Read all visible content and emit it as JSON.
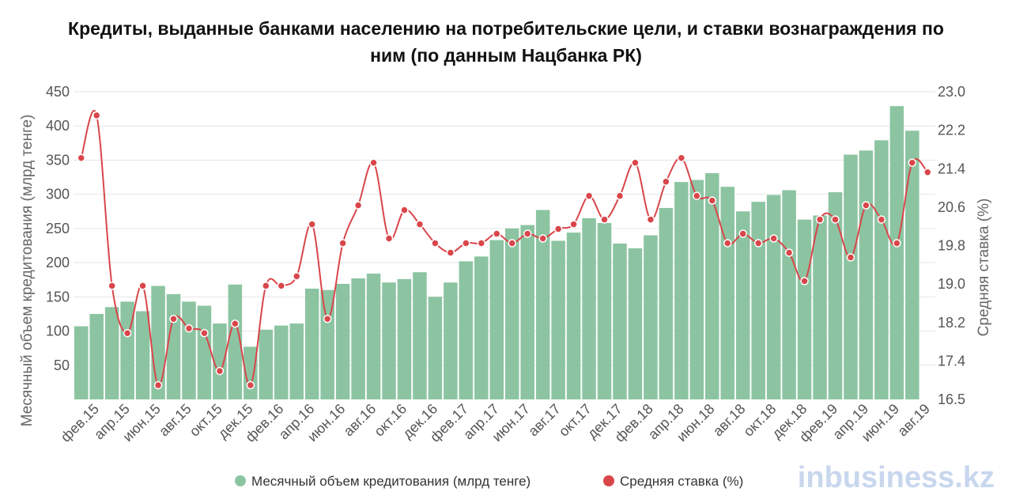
{
  "chart_data": {
    "type": "bar+line",
    "title_lines": [
      "Кредиты, выданные банками населению на потребительские цели, и ставки вознаграждения по",
      "ним (по данным Нацбанка РК)"
    ],
    "y_left": {
      "label": "Месячный объем кредитования (млрд тенге)",
      "ticks": [
        50,
        100,
        150,
        200,
        250,
        300,
        350,
        400,
        450
      ],
      "range": [
        0,
        450
      ]
    },
    "y_right": {
      "label": "Средняя ставка (%)",
      "ticks": [
        "16.5",
        "17.4",
        "18.2",
        "19.0",
        "19.8",
        "20.6",
        "21.4",
        "22.2",
        "23.0"
      ],
      "range": [
        16.5,
        23.0
      ]
    },
    "x_tick_labels": [
      "фев.15",
      "апр.15",
      "июн.15",
      "авг.15",
      "окт.15",
      "дек.15",
      "фев.16",
      "апр.16",
      "июн.16",
      "авг.16",
      "окт.16",
      "дек.16",
      "фев.17",
      "апр.17",
      "июн.17",
      "авг.17",
      "окт.17",
      "дек.17",
      "фев.18",
      "апр.18",
      "июн.18",
      "авг.18",
      "окт.18",
      "дек.18",
      "фев.19",
      "апр.19",
      "июн.19",
      "авг.19"
    ],
    "months": [
      "янв.15",
      "фев.15",
      "мар.15",
      "апр.15",
      "май.15",
      "июн.15",
      "июл.15",
      "авг.15",
      "сен.15",
      "окт.15",
      "ноя.15",
      "дек.15",
      "янв.16",
      "фев.16",
      "мар.16",
      "апр.16",
      "май.16",
      "июн.16",
      "июл.16",
      "авг.16",
      "сен.16",
      "окт.16",
      "ноя.16",
      "дек.16",
      "янв.17",
      "фев.17",
      "мар.17",
      "апр.17",
      "май.17",
      "июн.17",
      "июл.17",
      "авг.17",
      "сен.17",
      "окт.17",
      "ноя.17",
      "дек.17",
      "янв.18",
      "фев.18",
      "мар.18",
      "апр.18",
      "май.18",
      "июн.18",
      "июл.18",
      "авг.18",
      "сен.18",
      "окт.18",
      "ноя.18",
      "дек.18",
      "янв.19",
      "фев.19",
      "мар.19",
      "апр.19",
      "май.19",
      "июн.19",
      "июл.19",
      "авг.19"
    ],
    "series": [
      {
        "name": "Месячный объем кредитования (млрд тенге)",
        "kind": "bar",
        "axis": "left",
        "color": "#8cc4a2",
        "values": [
          107,
          125,
          135,
          143,
          129,
          166,
          154,
          143,
          137,
          111,
          168,
          77,
          102,
          108,
          111,
          162,
          160,
          169,
          177,
          184,
          171,
          176,
          186,
          150,
          171,
          202,
          209,
          233,
          250,
          255,
          277,
          232,
          244,
          265,
          258,
          228,
          221,
          240,
          280,
          318,
          321,
          331,
          311,
          275,
          289,
          299,
          306,
          263,
          269,
          303,
          358,
          364,
          379,
          429,
          393,
          null
        ]
      },
      {
        "name": "Средняя ставка (%)",
        "kind": "line",
        "axis": "right",
        "color": "#d9464a",
        "values": [
          21.6,
          22.5,
          18.9,
          17.9,
          18.9,
          16.8,
          18.2,
          18.0,
          17.9,
          17.1,
          18.1,
          16.8,
          18.9,
          18.9,
          19.1,
          20.2,
          18.2,
          19.8,
          20.6,
          21.5,
          19.9,
          20.5,
          20.2,
          19.8,
          19.6,
          19.8,
          19.8,
          20.0,
          19.8,
          20.0,
          19.9,
          20.1,
          20.2,
          20.8,
          20.3,
          20.8,
          21.5,
          20.3,
          21.1,
          21.6,
          20.8,
          20.7,
          19.8,
          20.0,
          19.8,
          19.9,
          19.6,
          19.0,
          20.3,
          20.3,
          19.5,
          20.6,
          20.3,
          19.8,
          21.5,
          21.3
        ]
      }
    ],
    "legend": {
      "position": "bottom-right",
      "items": [
        "Месячный объем кредитования (млрд тенге)",
        "Средняя ставка (%)"
      ]
    },
    "grid": true
  },
  "brand": {
    "text": "inbusiness.kz"
  }
}
